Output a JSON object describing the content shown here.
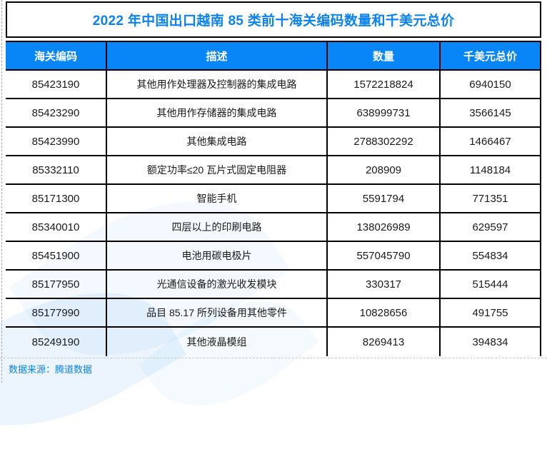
{
  "colors": {
    "accent_blue": "#0b82f1",
    "header_bg": "#0885f6",
    "header_text": "#ffffff",
    "grid_line": "#000000",
    "body_text": "#1a1a1a"
  },
  "chart_data": {
    "type": "table",
    "title": "2022 年中国出口越南 85 类前十海关编码数量和千美元总价",
    "columns": [
      "海关编码",
      "描述",
      "数量",
      "千美元总价"
    ],
    "rows": [
      {
        "code": "85423190",
        "description": "其他用作处理器及控制器的集成电路",
        "quantity": 1572218824,
        "total_kusd": 6940150
      },
      {
        "code": "85423290",
        "description": "其他用作存储器的集成电路",
        "quantity": 638999731,
        "total_kusd": 3566145
      },
      {
        "code": "85423990",
        "description": "其他集成电路",
        "quantity": 2788302292,
        "total_kusd": 1466467
      },
      {
        "code": "85332110",
        "description": "额定功率≤20 瓦片式固定电阻器",
        "quantity": 208909,
        "total_kusd": 1148184
      },
      {
        "code": "85171300",
        "description": "智能手机",
        "quantity": 5591794,
        "total_kusd": 771351
      },
      {
        "code": "85340010",
        "description": "四层以上的印刷电路",
        "quantity": 138026989,
        "total_kusd": 629597
      },
      {
        "code": "85451900",
        "description": "电池用碳电极片",
        "quantity": 557045790,
        "total_kusd": 554834
      },
      {
        "code": "85177950",
        "description": "光通信设备的激光收发模块",
        "quantity": 330317,
        "total_kusd": 515444
      },
      {
        "code": "85177990",
        "description": "品目 85.17 所列设备用其他零件",
        "quantity": 10828656,
        "total_kusd": 491755
      },
      {
        "code": "85249190",
        "description": "其他液晶模组",
        "quantity": 8269413,
        "total_kusd": 394834
      }
    ],
    "source": "数据来源：腾道数据",
    "legend": "none",
    "grid": "on"
  }
}
